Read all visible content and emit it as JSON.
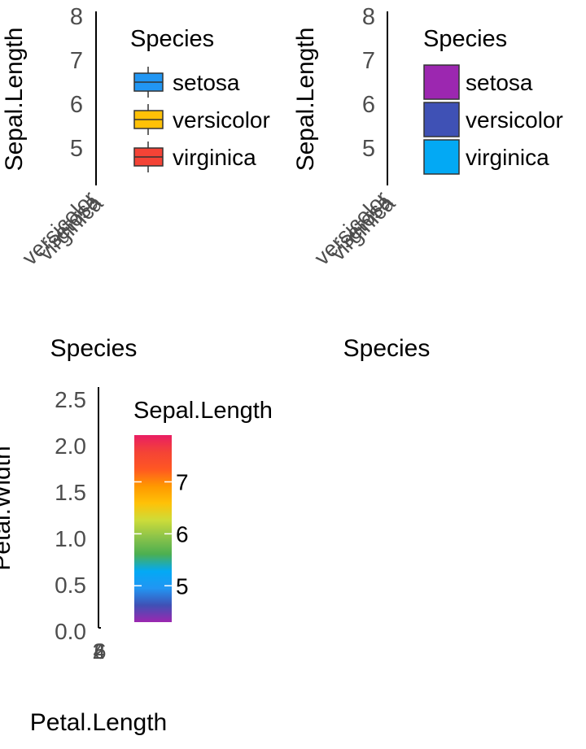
{
  "chart_data": [
    {
      "type": "boxplot",
      "xlabel": "Species",
      "ylabel": "Sepal.Length",
      "ylim": [
        4.3,
        8.0
      ],
      "y_ticks": [
        "5",
        "6",
        "7",
        "8"
      ],
      "x_tick_labels": [
        "setosa",
        "versicolor",
        "virginica"
      ],
      "legend": {
        "title": "Species",
        "placement": "right",
        "key_style": "boxplot",
        "entries": [
          {
            "label": "setosa",
            "color": "#2196F3"
          },
          {
            "label": "versicolor",
            "color": "#FFC107"
          },
          {
            "label": "virginica",
            "color": "#F44336"
          }
        ]
      },
      "grid": false
    },
    {
      "type": "bar",
      "xlabel": "Species",
      "ylabel": "Sepal.Length",
      "ylim": [
        4.3,
        8.0
      ],
      "y_ticks": [
        "5",
        "6",
        "7",
        "8"
      ],
      "x_tick_labels": [
        "setosa",
        "versicolor",
        "virginica"
      ],
      "legend": {
        "title": "Species",
        "placement": "right",
        "key_style": "filled-square",
        "entries": [
          {
            "label": "setosa",
            "color": "#9C27B0"
          },
          {
            "label": "versicolor",
            "color": "#3F51B5"
          },
          {
            "label": "virginica",
            "color": "#03A9F4"
          }
        ]
      },
      "grid": false
    },
    {
      "type": "scatter",
      "xlabel": "Petal.Length",
      "ylabel": "Petal.Width",
      "ylim": [
        0.0,
        2.6
      ],
      "y_ticks": [
        "0.0",
        "0.5",
        "1.0",
        "1.5",
        "2.0",
        "2.5"
      ],
      "x_ticks": [
        "2",
        "4",
        "6"
      ],
      "colorbar": {
        "title": "Sepal.Length",
        "range": [
          4.3,
          7.9
        ],
        "ticks": [
          "5",
          "6",
          "7"
        ],
        "colors": [
          "#9C27B0",
          "#3F51B5",
          "#2196F3",
          "#03A9F4",
          "#4CAF50",
          "#8BC34A",
          "#CDDC39",
          "#FFC107",
          "#FF9800",
          "#FF5722",
          "#F44336",
          "#E91E63"
        ]
      },
      "grid": false
    }
  ]
}
